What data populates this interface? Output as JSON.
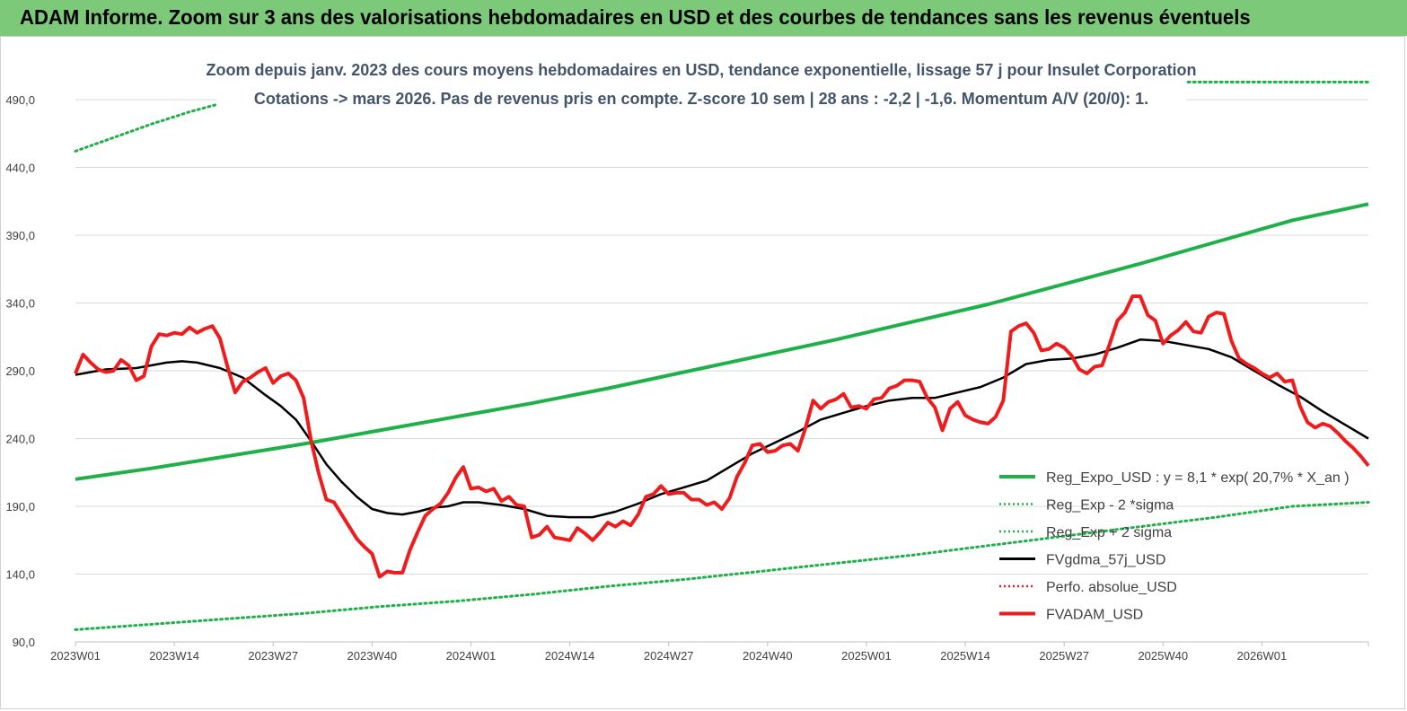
{
  "banner": {
    "title": "ADAM Informe. Zoom sur 3 ans des valorisations hebdomadaires en USD et des courbes de tendances sans les revenus éventuels"
  },
  "chart_data": {
    "type": "line",
    "title": "Zoom depuis janv. 2023 des cours moyens hebdomadaires en USD, tendance exponentielle, lissage 57 j pour Insulet Corporation",
    "subtitle": "Cotations -> mars 2026. Pas de revenus pris en  compte. Z-score 10 sem  | 28 ans : -2,2 | -1,6. Momentum A/V (20/0): 1.",
    "xlabel": "",
    "ylabel": "",
    "ylim": [
      90,
      490
    ],
    "xlim": [
      0,
      170
    ],
    "x_ticks": [
      {
        "pos": 0,
        "label": "2023W01"
      },
      {
        "pos": 13,
        "label": "2023W14"
      },
      {
        "pos": 26,
        "label": "2023W27"
      },
      {
        "pos": 39,
        "label": "2023W40"
      },
      {
        "pos": 52,
        "label": "2024W01"
      },
      {
        "pos": 65,
        "label": "2024W14"
      },
      {
        "pos": 78,
        "label": "2024W27"
      },
      {
        "pos": 91,
        "label": "2024W40"
      },
      {
        "pos": 104,
        "label": "2025W01"
      },
      {
        "pos": 117,
        "label": "2025W14"
      },
      {
        "pos": 130,
        "label": "2025W27"
      },
      {
        "pos": 143,
        "label": "2025W40"
      },
      {
        "pos": 156,
        "label": "2026W01"
      }
    ],
    "y_ticks": [
      "90,0",
      "140,0",
      "190,0",
      "240,0",
      "290,0",
      "340,0",
      "390,0",
      "440,0",
      "490,0"
    ],
    "y_tick_values": [
      90,
      140,
      190,
      240,
      290,
      340,
      390,
      440,
      490
    ],
    "grid": "horizontal",
    "legend_position": "bottom-right",
    "series": [
      {
        "name": "Reg_Expo_USD : y = 8,1  * exp( 20,7% *  X_an )",
        "color": "#1fb04a",
        "style": "solid-thick",
        "x": [
          0,
          10,
          20,
          30,
          40,
          50,
          60,
          70,
          80,
          90,
          100,
          110,
          120,
          130,
          140,
          150,
          160,
          170
        ],
        "y": [
          210,
          218,
          227,
          236,
          246,
          256,
          266,
          277,
          289,
          301,
          313,
          326,
          339,
          354,
          369,
          385,
          401,
          413
        ]
      },
      {
        "name": "Reg_Exp - 2 *sigma",
        "color": "#1fb04a",
        "style": "dotted",
        "x": [
          0,
          10,
          20,
          30,
          40,
          50,
          60,
          70,
          80,
          90,
          100,
          110,
          120,
          130,
          140,
          150,
          160,
          170
        ],
        "y": [
          99,
          103,
          107,
          111,
          116,
          120,
          125,
          131,
          136,
          142,
          148,
          154,
          161,
          168,
          175,
          182,
          190,
          193
        ]
      },
      {
        "name": "Reg_Exp + 2 sigma",
        "color": "#1fb04a",
        "style": "dotted",
        "x": [
          0,
          5,
          10,
          15,
          19,
          146,
          170
        ],
        "y": [
          452,
          462,
          472,
          481,
          487,
          503,
          503
        ]
      },
      {
        "name": "FVgdma_57j_USD",
        "color": "#000000",
        "style": "solid",
        "x": [
          0,
          4,
          8,
          12,
          14,
          16,
          19,
          22,
          25,
          27,
          29,
          31,
          33,
          35,
          37,
          39,
          41,
          43,
          45,
          47,
          49,
          51,
          53,
          56,
          59,
          62,
          65,
          68,
          71,
          74,
          77,
          80,
          83,
          86,
          89,
          92,
          95,
          98,
          101,
          104,
          107,
          110,
          113,
          116,
          119,
          122,
          125,
          128,
          131,
          134,
          137,
          140,
          143,
          146,
          149,
          152,
          155,
          158,
          161,
          164,
          167,
          170
        ],
        "y": [
          287,
          291,
          292,
          296,
          297,
          296,
          292,
          285,
          272,
          264,
          254,
          238,
          221,
          208,
          197,
          188,
          185,
          184,
          186,
          189,
          190,
          193,
          193,
          191,
          188,
          183,
          182,
          182,
          186,
          192,
          199,
          204,
          209,
          219,
          229,
          237,
          245,
          254,
          259,
          264,
          268,
          270,
          270,
          274,
          278,
          285,
          295,
          298,
          299,
          302,
          307,
          313,
          312,
          309,
          306,
          300,
          290,
          280,
          271,
          260,
          250,
          240
        ]
      },
      {
        "name": "Perfo. absolue_USD",
        "color": "#e02020",
        "style": "dotted",
        "x": [],
        "y": []
      },
      {
        "name": "FVADAM_USD",
        "color": "#ee1c1c",
        "style": "solid-thick",
        "x": [
          0,
          1,
          2,
          3,
          4,
          5,
          6,
          7,
          8,
          9,
          10,
          11,
          12,
          13,
          14,
          15,
          16,
          17,
          18,
          19,
          20,
          21,
          22,
          23,
          24,
          25,
          26,
          27,
          28,
          29,
          30,
          31,
          32,
          33,
          34,
          35,
          36,
          37,
          38,
          39,
          40,
          41,
          42,
          43,
          44,
          45,
          46,
          47,
          48,
          49,
          50,
          51,
          52,
          53,
          54,
          55,
          56,
          57,
          58,
          59,
          60,
          61,
          62,
          63,
          64,
          65,
          66,
          67,
          68,
          69,
          70,
          71,
          72,
          73,
          74,
          75,
          76,
          77,
          78,
          79,
          80,
          81,
          82,
          83,
          84,
          85,
          86,
          87,
          88,
          89,
          90,
          91,
          92,
          93,
          94,
          95,
          96,
          97,
          98,
          99,
          100,
          101,
          102,
          103,
          104,
          105,
          106,
          107,
          108,
          109,
          110,
          111,
          112,
          113,
          114,
          115,
          116,
          117,
          118,
          119,
          120,
          121,
          122,
          123,
          124,
          125,
          126,
          127,
          128,
          129,
          130,
          131,
          132,
          133,
          134,
          135,
          136,
          137,
          138,
          139,
          140,
          141,
          142,
          143,
          144,
          145,
          146,
          147,
          148,
          149,
          150,
          151,
          152,
          153,
          154,
          155,
          156,
          157,
          158,
          159,
          160,
          161,
          162,
          163,
          164,
          165,
          166,
          167,
          168,
          169,
          170
        ],
        "y": [
          288,
          302,
          296,
          291,
          289,
          290,
          298,
          294,
          283,
          286,
          308,
          317,
          316,
          318,
          317,
          322,
          318,
          321,
          323,
          314,
          293,
          274,
          282,
          285,
          289,
          292,
          281,
          286,
          288,
          283,
          270,
          238,
          214,
          195,
          193,
          184,
          175,
          166,
          160,
          155,
          138,
          142,
          141,
          141,
          158,
          171,
          183,
          188,
          192,
          200,
          211,
          219,
          203,
          204,
          201,
          203,
          194,
          197,
          191,
          190,
          167,
          169,
          175,
          167,
          166,
          165,
          174,
          170,
          165,
          171,
          178,
          175,
          179,
          176,
          184,
          197,
          199,
          205,
          199,
          200,
          200,
          195,
          195,
          191,
          193,
          188,
          196,
          212,
          222,
          235,
          236,
          230,
          231,
          235,
          236,
          231,
          248,
          268,
          262,
          267,
          269,
          273,
          263,
          264,
          262,
          269,
          270,
          277,
          279,
          283,
          283,
          282,
          270,
          263,
          246,
          262,
          267,
          257,
          254,
          252,
          251,
          256,
          268,
          319,
          323,
          325,
          318,
          305,
          306,
          310,
          307,
          301,
          291,
          288,
          293,
          294,
          310,
          327,
          333,
          345,
          345,
          331,
          327,
          310,
          316,
          320,
          326,
          319,
          318,
          330,
          333,
          332,
          312,
          299,
          295,
          292,
          288,
          285,
          288,
          282,
          283,
          264,
          252,
          248,
          251,
          249,
          244,
          238,
          233,
          227,
          220
        ]
      }
    ]
  }
}
